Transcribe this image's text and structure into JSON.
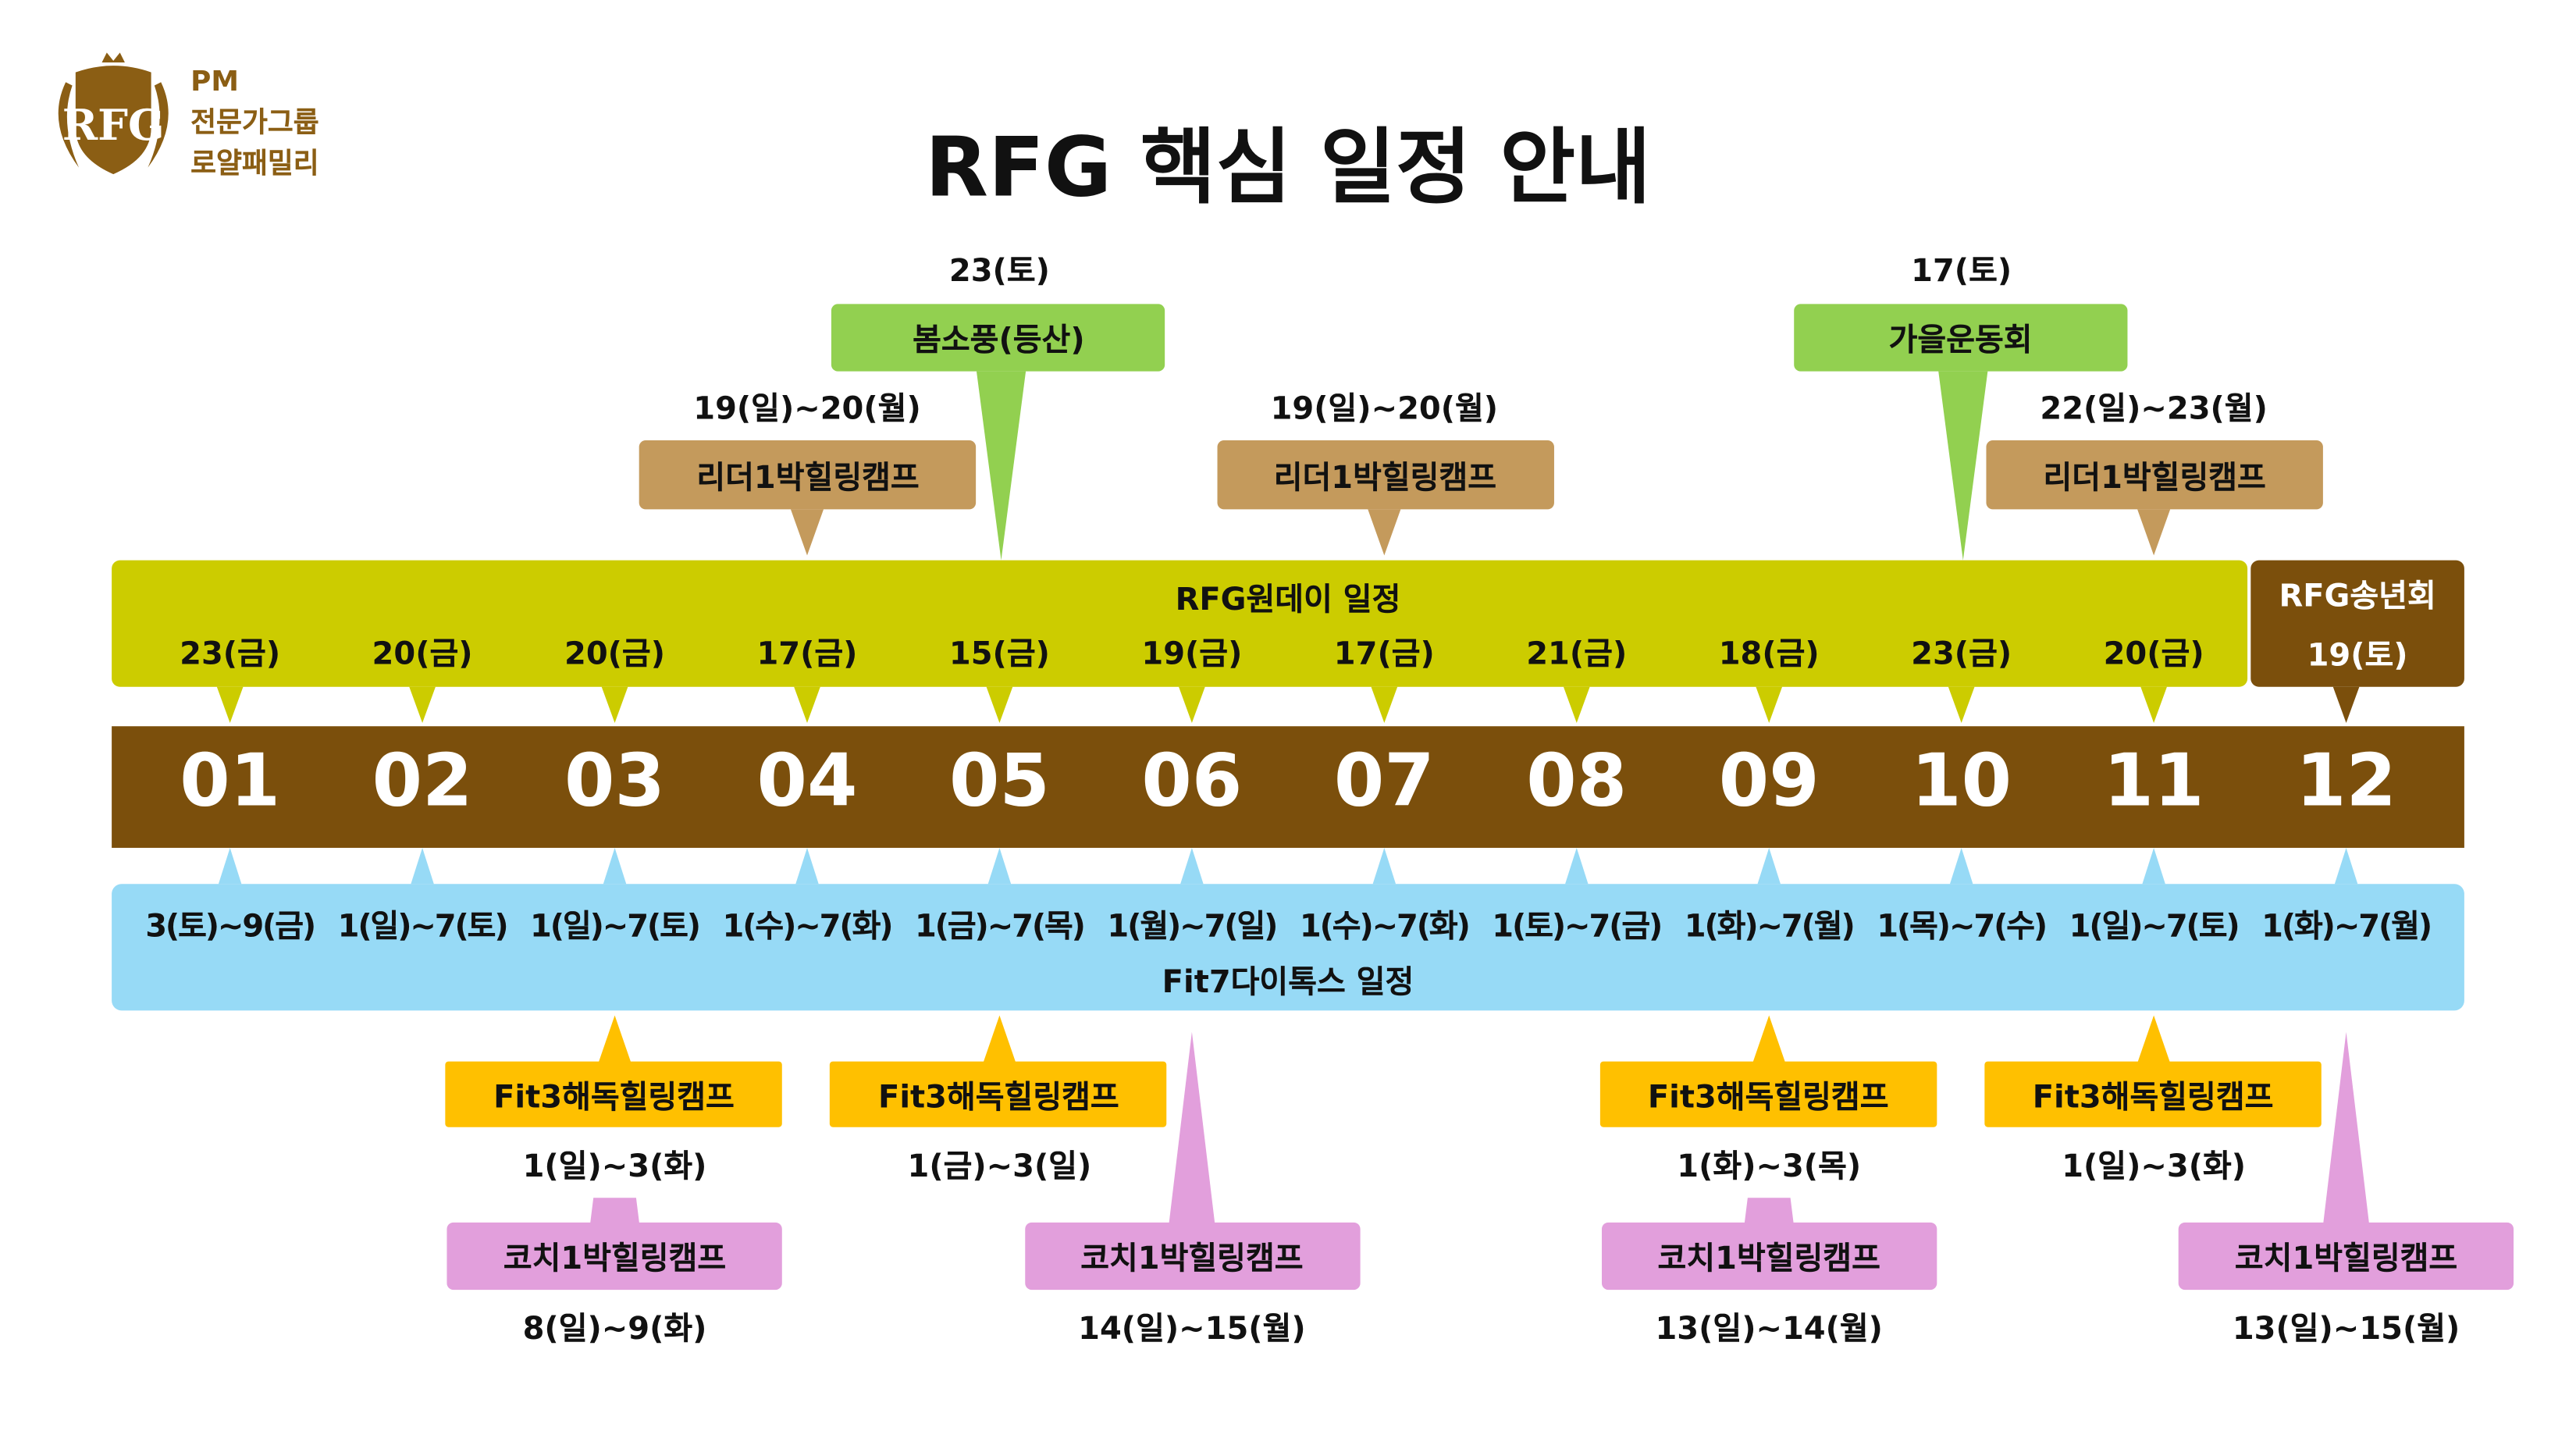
{
  "logo": {
    "emblem_text": "RFG",
    "line1": "PM",
    "line2": "전문가그룹",
    "line3": "로얄패밀리"
  },
  "title": "RFG 핵심 일정 안내",
  "colors": {
    "oneday": "#CCCC00",
    "month_band": "#7B4F0C",
    "fit7": "#97DAF6",
    "event_green": "#92D050",
    "leader": "#C49A5C",
    "fit3": "#FFC000",
    "coach": "#E29FDC"
  },
  "months": [
    "01",
    "02",
    "03",
    "04",
    "05",
    "06",
    "07",
    "08",
    "09",
    "10",
    "11",
    "12"
  ],
  "oneday": {
    "label": "RFG원데이 일정",
    "dates": [
      "23(금)",
      "20(금)",
      "20(금)",
      "17(금)",
      "15(금)",
      "19(금)",
      "17(금)",
      "21(금)",
      "18(금)",
      "23(금)",
      "20(금)"
    ]
  },
  "year_end": {
    "label": "RFG송년회",
    "date": "19(토)"
  },
  "fit7": {
    "label": "Fit7다이톡스 일정",
    "dates": [
      "3(토)~9(금)",
      "1(일)~7(토)",
      "1(일)~7(토)",
      "1(수)~7(화)",
      "1(금)~7(목)",
      "1(월)~7(일)",
      "1(수)~7(화)",
      "1(토)~7(금)",
      "1(화)~7(월)",
      "1(목)~7(수)",
      "1(일)~7(토)",
      "1(화)~7(월)"
    ]
  },
  "top_events": [
    {
      "label": "봄소풍(등산)",
      "date": "23(토)",
      "month": 5,
      "type": "event_green"
    },
    {
      "label": "가을운동회",
      "date": "17(토)",
      "month": 10,
      "type": "event_green"
    },
    {
      "label": "리더1박힐링캠프",
      "date": "19(일)~20(월)",
      "month": 4,
      "type": "leader"
    },
    {
      "label": "리더1박힐링캠프",
      "date": "19(일)~20(월)",
      "month": 7,
      "type": "leader"
    },
    {
      "label": "리더1박힐링캠프",
      "date": "22(일)~23(월)",
      "month": 11,
      "type": "leader"
    }
  ],
  "fit3_camps": [
    {
      "label": "Fit3해독힐링캠프",
      "date": "1(일)~3(화)",
      "month": 3
    },
    {
      "label": "Fit3해독힐링캠프",
      "date": "1(금)~3(일)",
      "month": 5
    },
    {
      "label": "Fit3해독힐링캠프",
      "date": "1(화)~3(목)",
      "month": 9
    },
    {
      "label": "Fit3해독힐링캠프",
      "date": "1(일)~3(화)",
      "month": 11
    }
  ],
  "coach_camps": [
    {
      "label": "코치1박힐링캠프",
      "date": "8(일)~9(화)",
      "month": 3
    },
    {
      "label": "코치1박힐링캠프",
      "date": "14(일)~15(월)",
      "month": 6
    },
    {
      "label": "코치1박힐링캠프",
      "date": "13(일)~14(월)",
      "month": 9
    },
    {
      "label": "코치1박힐링캠프",
      "date": "13(일)~15(월)",
      "month": 12
    }
  ]
}
